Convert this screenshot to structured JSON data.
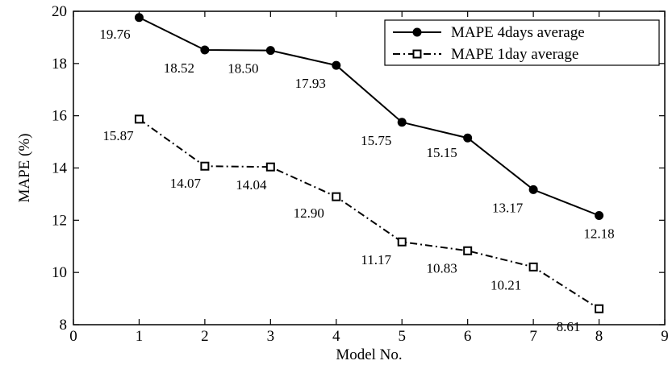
{
  "chart_data": {
    "type": "line",
    "title": "",
    "xlabel": "Model No.",
    "ylabel": "MAPE (%)",
    "xlim": [
      0,
      9
    ],
    "ylim": [
      8,
      20
    ],
    "x_ticks": [
      "0",
      "1",
      "2",
      "3",
      "4",
      "5",
      "6",
      "7",
      "8",
      "9"
    ],
    "y_ticks": [
      "8",
      "10",
      "12",
      "14",
      "16",
      "18",
      "20"
    ],
    "grid": false,
    "legend_position": "top-right",
    "x": [
      1,
      2,
      3,
      4,
      5,
      6,
      7,
      8
    ],
    "series": [
      {
        "name": "MAPE 4days average",
        "values": [
          19.76,
          18.52,
          18.5,
          17.93,
          15.75,
          15.15,
          13.17,
          12.18
        ],
        "labels": [
          "19.76",
          "18.52",
          "18.50",
          "17.93",
          "15.75",
          "15.15",
          "13.17",
          "12.18"
        ],
        "line_style": "solid",
        "marker": "filled-circle",
        "color": "#000000"
      },
      {
        "name": "MAPE 1day average",
        "values": [
          15.87,
          14.07,
          14.04,
          12.9,
          11.17,
          10.83,
          10.21,
          8.61
        ],
        "labels": [
          "15.87",
          "14.07",
          "14.04",
          "12.90",
          "11.17",
          "10.83",
          "10.21",
          "8.61"
        ],
        "line_style": "dash-dot",
        "marker": "hollow-square",
        "color": "#000000"
      }
    ]
  }
}
